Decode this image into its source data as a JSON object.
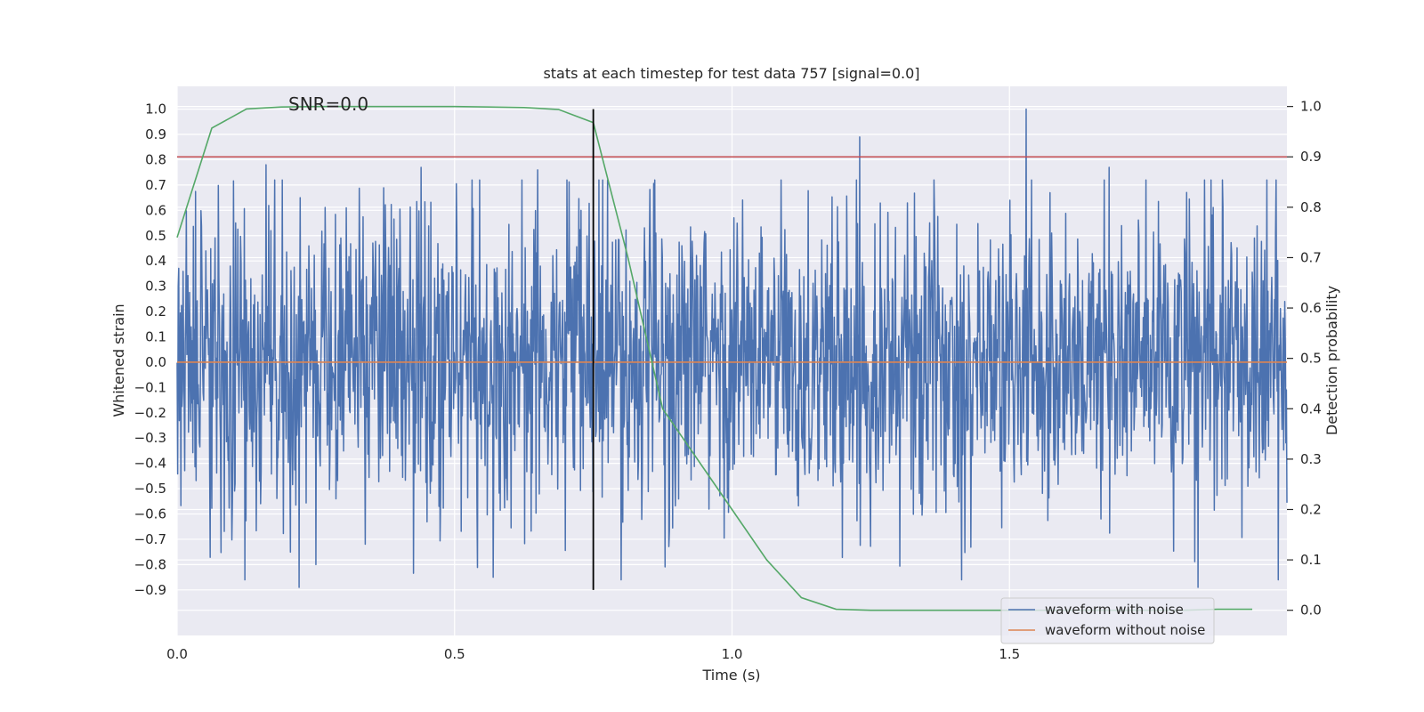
{
  "chart_data": {
    "type": "line",
    "title": "stats at each timestep for test data 757 [signal=0.0]",
    "xlabel": "Time (s)",
    "ylabel_left": "Whitened strain",
    "ylabel_right": "Detection probability",
    "annotation": "SNR=0.0",
    "xlim": [
      0.0,
      2.0
    ],
    "ylim_left": [
      -1.08,
      1.09
    ],
    "ylim_right": [
      -0.05,
      1.04
    ],
    "x_ticks": [
      0.0,
      0.5,
      1.0,
      1.5
    ],
    "x_tick_labels": [
      "0.0",
      "0.5",
      "1.0",
      "1.5"
    ],
    "y_left_ticks": [
      1.0,
      0.9,
      0.8,
      0.7,
      0.6,
      0.5,
      0.4,
      0.3,
      0.2,
      0.1,
      0.0,
      -0.1,
      -0.2,
      -0.3,
      -0.4,
      -0.5,
      -0.6,
      -0.7,
      -0.8,
      -0.9
    ],
    "y_left_tick_labels": [
      "1.0",
      "0.9",
      "0.8",
      "0.7",
      "0.6",
      "0.5",
      "0.4",
      "0.3",
      "0.2",
      "0.1",
      "0.0",
      "−0.1",
      "−0.2",
      "−0.3",
      "−0.4",
      "−0.5",
      "−0.6",
      "−0.7",
      "−0.8",
      "−0.9"
    ],
    "y_right_ticks": [
      1.0,
      0.9,
      0.8,
      0.7,
      0.6,
      0.5,
      0.4,
      0.3,
      0.2,
      0.1,
      0.0
    ],
    "y_right_tick_labels": [
      "1.0",
      "0.9",
      "0.8",
      "0.7",
      "0.6",
      "0.5",
      "0.4",
      "0.3",
      "0.2",
      "0.1",
      "0.0"
    ],
    "grid": true,
    "legend_placement": "lower-right",
    "series": [
      {
        "name": "waveform with noise",
        "axis": "left",
        "color": "#4c72b0",
        "style": "dense noise, approx. 2048 samples",
        "sample_count": 2048,
        "approx_std": 0.3,
        "x_range": [
          0.0,
          2.0
        ],
        "peaks": [
          {
            "x": 1.53,
            "y": 1.0
          },
          {
            "x": 1.23,
            "y": 0.89
          },
          {
            "x": 0.16,
            "y": 0.78
          },
          {
            "x": 0.44,
            "y": 0.77
          },
          {
            "x": 1.68,
            "y": 0.77
          },
          {
            "x": 0.65,
            "y": 0.76
          },
          {
            "x": 1.84,
            "y": -0.89
          },
          {
            "x": 0.22,
            "y": -0.89
          },
          {
            "x": 0.57,
            "y": -0.85
          },
          {
            "x": 0.25,
            "y": -0.8
          }
        ]
      },
      {
        "name": "waveform without noise",
        "axis": "left",
        "color": "#dd8452",
        "x": [
          0.0,
          2.0
        ],
        "y": [
          0.0,
          0.0
        ]
      },
      {
        "name": "",
        "axis": "right",
        "color": "#55a868",
        "x": [
          0.0,
          0.0625,
          0.125,
          0.1875,
          0.25,
          0.3125,
          0.375,
          0.4375,
          0.5,
          0.5625,
          0.625,
          0.6875,
          0.75,
          0.8125,
          0.875,
          0.9375,
          1.0,
          1.0625,
          1.125,
          1.1875,
          1.25,
          1.3125,
          1.375,
          1.4375,
          1.5,
          1.5625,
          1.625,
          1.6875,
          1.75,
          1.8125,
          1.875,
          1.9375
        ],
        "y": [
          0.74,
          0.957,
          0.995,
          0.999,
          1.0,
          1.0,
          1.0,
          1.0,
          1.0,
          0.999,
          0.998,
          0.994,
          0.968,
          0.7,
          0.4,
          0.3,
          0.2,
          0.1,
          0.025,
          0.002,
          0.0,
          0.0,
          0.0,
          0.0,
          0.0,
          0.0,
          0.0,
          0.0,
          0.0,
          0.0,
          0.002,
          0.002
        ]
      },
      {
        "name": "",
        "axis": "right",
        "color": "#c44e52",
        "x": [
          0.0,
          2.0
        ],
        "y": [
          0.9,
          0.9
        ]
      }
    ],
    "vline": {
      "x": 0.75,
      "y_range": [
        -0.9,
        1.0
      ],
      "color": "#000000"
    }
  }
}
